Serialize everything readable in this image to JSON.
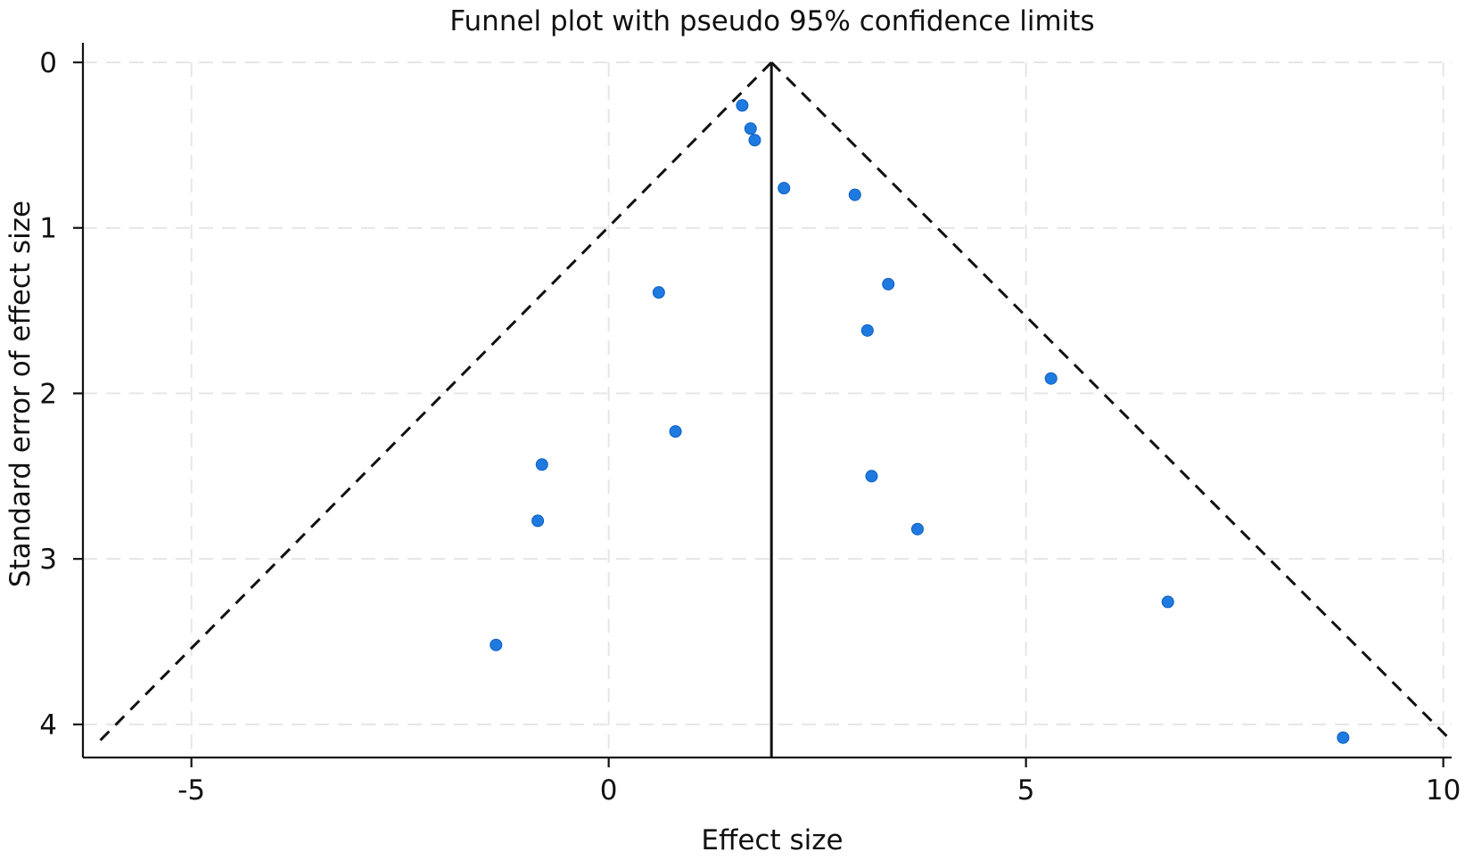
{
  "chart_data": {
    "type": "scatter",
    "title": "Funnel plot with pseudo 95% confidence limits",
    "xlabel": "Effect size",
    "ylabel": "Standard error of effect size",
    "xlim": [
      -6.3,
      10.1
    ],
    "ylim": [
      0,
      4.2
    ],
    "x_ticks": [
      -5,
      0,
      5,
      10
    ],
    "x_tick_labels": [
      "-5",
      "0",
      "5",
      "10"
    ],
    "y_ticks": [
      0,
      1,
      2,
      3,
      4
    ],
    "y_tick_labels": [
      "0",
      "1",
      "2",
      "3",
      "4"
    ],
    "grid": true,
    "pooled_effect": 1.95,
    "funnel": {
      "apex": {
        "x": 1.95,
        "se": 0
      },
      "lower_left": {
        "x": -6.1,
        "se": 4.1
      },
      "lower_right": {
        "x": 10.1,
        "se": 4.1
      }
    },
    "points": [
      {
        "x": 1.6,
        "se": 0.26
      },
      {
        "x": 1.7,
        "se": 0.4
      },
      {
        "x": 1.75,
        "se": 0.47
      },
      {
        "x": 2.1,
        "se": 0.76
      },
      {
        "x": 2.95,
        "se": 0.8
      },
      {
        "x": 0.6,
        "se": 1.39
      },
      {
        "x": 3.35,
        "se": 1.34
      },
      {
        "x": 3.1,
        "se": 1.62
      },
      {
        "x": 5.3,
        "se": 1.91
      },
      {
        "x": 0.8,
        "se": 2.23
      },
      {
        "x": -0.8,
        "se": 2.43
      },
      {
        "x": 3.15,
        "se": 2.5
      },
      {
        "x": -0.85,
        "se": 2.77
      },
      {
        "x": 3.7,
        "se": 2.82
      },
      {
        "x": 6.7,
        "se": 3.26
      },
      {
        "x": -1.35,
        "se": 3.52
      },
      {
        "x": 8.8,
        "se": 4.08
      }
    ]
  }
}
